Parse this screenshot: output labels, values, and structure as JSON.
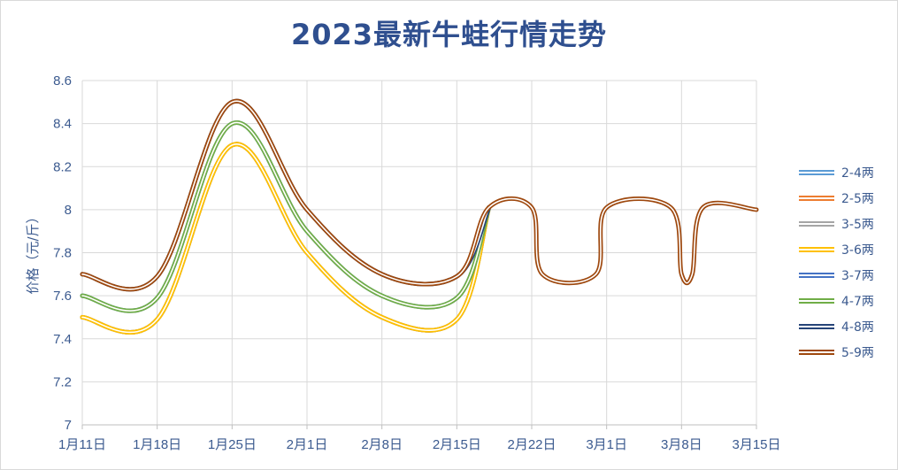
{
  "chart_data": {
    "type": "line",
    "title": "2023最新牛蛙行情走势",
    "ylabel": "价格（元/斤）",
    "xlabel": "",
    "ylim": [
      7,
      8.6
    ],
    "yticks": [
      "7",
      "7.2",
      "7.4",
      "7.6",
      "7.8",
      "8",
      "8.2",
      "8.4",
      "8.6"
    ],
    "x_labels": [
      "1月11日",
      "1月18日",
      "1月25日",
      "2月1日",
      "2月8日",
      "2月15日",
      "2月22日",
      "3月1日",
      "3月8日",
      "3月15日"
    ],
    "x_dates": [
      "2023-01-11",
      "2023-01-18",
      "2023-01-25",
      "2023-02-01",
      "2023-02-08",
      "2023-02-15",
      "2023-02-22",
      "2023-03-01",
      "2023-03-08",
      "2023-03-15"
    ],
    "grid": true,
    "legend_position": "right",
    "series": [
      {
        "name": "2-4两",
        "color": "#5b9bd5",
        "points": [
          [
            "2023-01-11",
            7.5
          ],
          [
            "2023-01-18",
            7.49
          ],
          [
            "2023-01-25",
            8.3
          ],
          [
            "2023-02-01",
            7.8
          ],
          [
            "2023-02-08",
            7.5
          ],
          [
            "2023-02-15",
            7.49
          ],
          [
            "2023-02-18",
            8.01
          ]
        ]
      },
      {
        "name": "2-5两",
        "color": "#ed7d31",
        "points": [
          [
            "2023-01-11",
            7.5
          ],
          [
            "2023-01-18",
            7.49
          ],
          [
            "2023-01-25",
            8.3
          ],
          [
            "2023-02-01",
            7.8
          ],
          [
            "2023-02-08",
            7.5
          ],
          [
            "2023-02-15",
            7.49
          ],
          [
            "2023-02-18",
            8.01
          ]
        ]
      },
      {
        "name": "3-5两",
        "color": "#a5a5a5",
        "points": [
          [
            "2023-01-11",
            7.5
          ],
          [
            "2023-01-18",
            7.49
          ],
          [
            "2023-01-25",
            8.3
          ],
          [
            "2023-02-01",
            7.8
          ],
          [
            "2023-02-08",
            7.5
          ],
          [
            "2023-02-15",
            7.49
          ],
          [
            "2023-02-18",
            8.01
          ]
        ]
      },
      {
        "name": "3-6两",
        "color": "#ffc000",
        "points": [
          [
            "2023-01-11",
            7.5
          ],
          [
            "2023-01-18",
            7.49
          ],
          [
            "2023-01-25",
            8.3
          ],
          [
            "2023-02-01",
            7.8
          ],
          [
            "2023-02-08",
            7.5
          ],
          [
            "2023-02-15",
            7.49
          ],
          [
            "2023-02-18",
            8.01
          ]
        ]
      },
      {
        "name": "3-7两",
        "color": "#4472c4",
        "points": [
          [
            "2023-01-11",
            7.6
          ],
          [
            "2023-01-18",
            7.59
          ],
          [
            "2023-01-25",
            8.4
          ],
          [
            "2023-02-01",
            7.9
          ],
          [
            "2023-02-08",
            7.6
          ],
          [
            "2023-02-15",
            7.59
          ],
          [
            "2023-02-18",
            8.01
          ]
        ]
      },
      {
        "name": "4-7两",
        "color": "#70ad47",
        "points": [
          [
            "2023-01-11",
            7.6
          ],
          [
            "2023-01-18",
            7.59
          ],
          [
            "2023-01-25",
            8.4
          ],
          [
            "2023-02-01",
            7.9
          ],
          [
            "2023-02-08",
            7.6
          ],
          [
            "2023-02-15",
            7.59
          ],
          [
            "2023-02-18",
            8.01
          ]
        ]
      },
      {
        "name": "4-8两",
        "color": "#264478",
        "points": [
          [
            "2023-01-11",
            7.7
          ],
          [
            "2023-01-18",
            7.69
          ],
          [
            "2023-01-25",
            8.5
          ],
          [
            "2023-02-01",
            8.0
          ],
          [
            "2023-02-08",
            7.7
          ],
          [
            "2023-02-15",
            7.69
          ],
          [
            "2023-02-18",
            8.01
          ]
        ]
      },
      {
        "name": "5-9两",
        "color": "#9e480e",
        "points": [
          [
            "2023-01-11",
            7.7
          ],
          [
            "2023-01-18",
            7.69
          ],
          [
            "2023-01-25",
            8.5
          ],
          [
            "2023-02-01",
            8.0
          ],
          [
            "2023-02-08",
            7.7
          ],
          [
            "2023-02-15",
            7.69
          ],
          [
            "2023-02-18",
            8.01
          ],
          [
            "2023-02-22",
            8.01
          ],
          [
            "2023-02-23",
            7.7
          ],
          [
            "2023-02-28",
            7.7
          ],
          [
            "2023-03-01",
            8.01
          ],
          [
            "2023-03-07",
            8.01
          ],
          [
            "2023-03-08",
            7.7
          ],
          [
            "2023-03-09",
            7.7
          ],
          [
            "2023-03-10",
            8.01
          ],
          [
            "2023-03-15",
            8.0
          ]
        ]
      }
    ]
  }
}
